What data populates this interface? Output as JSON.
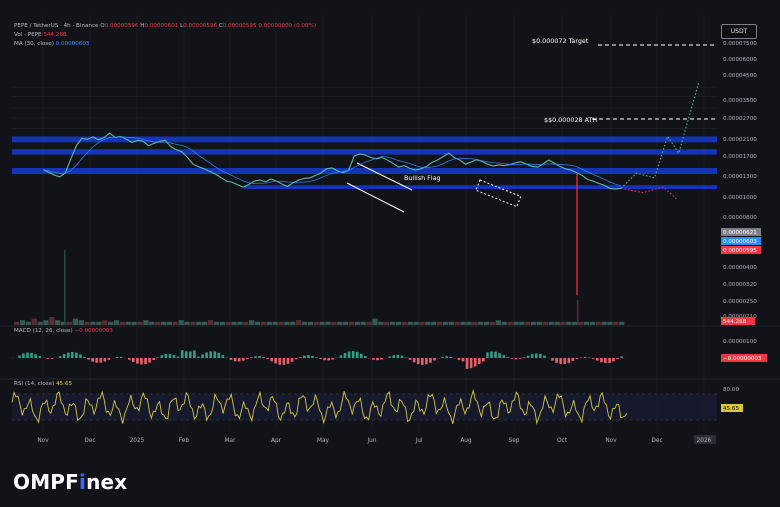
{
  "header": {
    "symbol_line_prefix": "PEPE / TetherUS · 4h · Binance",
    "ohlc": {
      "o_label": "O",
      "o": "0.00000596",
      "h_label": "H",
      "h": "0.00000601",
      "l_label": "L",
      "l": "0.00000596",
      "c_label": "C",
      "c": "0.00000595",
      "chg": "0.00000000 (0.00%)"
    },
    "vol_label": "Vol · PEPE",
    "vol_value": "544.26B",
    "ma_label": "MA (30, close)",
    "ma_value": "0.00000603",
    "currency_button": "USDT"
  },
  "macd_header": {
    "label": "MACD (12, 26, close)",
    "value": "−0.00000003"
  },
  "rsi_header": {
    "label": "RSI (14, close)",
    "value": "45.65"
  },
  "brand": {
    "part1": "OMPF",
    "part2": "i",
    "part3": "nex"
  },
  "colors": {
    "zone": "#1536c8",
    "price": "#5fb7a8",
    "ma": "#2c8cff",
    "down": "#f23645",
    "rsi": "#d7c63a",
    "grid": "#1e2029",
    "bg": "#121318",
    "brand_accent": "#2f6bff"
  },
  "chart_data": [
    {
      "type": "line",
      "name": "price",
      "x_ticks": [
        "Nov",
        "Dec",
        "2025",
        "Feb",
        "Mar",
        "Apr",
        "May",
        "Jun",
        "Jul",
        "Aug",
        "Sep",
        "Oct",
        "Nov",
        "Dec",
        "2026"
      ],
      "y_scale": "log",
      "y_ticks": [
        "0.00007500",
        "0.00006000",
        "0.00004500",
        "0.00003500",
        "0.00002700",
        "0.00002100",
        "0.00001700",
        "0.00001300",
        "0.00001000",
        "0.00000800",
        "0.00000621",
        "0.00000603",
        "0.00000595",
        "0.00000400",
        "0.00000320",
        "0.00000250",
        "0.00000210"
      ],
      "series": [
        {
          "values": [
            [
              0,
              9.6
            ],
            [
              0.25,
              9.0
            ],
            [
              0.5,
              8.4
            ],
            [
              0.75,
              8.0
            ],
            [
              1.0,
              8.8
            ],
            [
              1.25,
              12.5
            ],
            [
              1.5,
              17.5
            ],
            [
              1.75,
              21.0
            ],
            [
              2.0,
              20.5
            ],
            [
              2.25,
              21.8
            ],
            [
              2.5,
              20.2
            ],
            [
              2.75,
              21.5
            ],
            [
              3.0,
              24.0
            ],
            [
              3.25,
              21.5
            ],
            [
              3.5,
              22.0
            ],
            [
              3.75,
              20.5
            ],
            [
              4.0,
              19.0
            ],
            [
              4.25,
              20.0
            ],
            [
              4.5,
              19.5
            ],
            [
              4.75,
              17.5
            ],
            [
              5.0,
              18.5
            ],
            [
              5.25,
              19.5
            ],
            [
              5.5,
              20.0
            ],
            [
              5.75,
              17.0
            ],
            [
              6.0,
              15.8
            ],
            [
              6.25,
              15.0
            ],
            [
              6.5,
              13.0
            ],
            [
              6.75,
              11.0
            ],
            [
              7.0,
              10.3
            ],
            [
              7.25,
              9.8
            ],
            [
              7.5,
              9.2
            ],
            [
              7.75,
              8.6
            ],
            [
              8.0,
              7.9
            ],
            [
              8.25,
              7.2
            ],
            [
              8.5,
              7.0
            ],
            [
              8.75,
              6.6
            ],
            [
              9.0,
              6.2
            ],
            [
              9.25,
              6.6
            ],
            [
              9.5,
              7.2
            ],
            [
              9.75,
              7.4
            ],
            [
              10.0,
              7.1
            ],
            [
              10.25,
              7.6
            ],
            [
              10.5,
              7.2
            ],
            [
              10.75,
              6.7
            ],
            [
              11.0,
              6.3
            ],
            [
              11.25,
              6.9
            ],
            [
              11.5,
              7.4
            ],
            [
              11.75,
              7.7
            ],
            [
              12.0,
              7.8
            ],
            [
              12.25,
              8.3
            ],
            [
              12.5,
              8.8
            ],
            [
              12.75,
              9.8
            ],
            [
              13.0,
              10.0
            ],
            [
              13.25,
              9.3
            ],
            [
              13.5,
              8.9
            ],
            [
              13.75,
              9.5
            ],
            [
              14.0,
              13.5
            ],
            [
              14.25,
              14.2
            ],
            [
              14.5,
              13.8
            ],
            [
              14.75,
              13.0
            ],
            [
              15.0,
              12.6
            ],
            [
              15.25,
              13.0
            ],
            [
              15.5,
              12.2
            ],
            [
              15.75,
              11.2
            ],
            [
              16.0,
              10.2
            ],
            [
              16.25,
              10.6
            ],
            [
              16.5,
              9.9
            ],
            [
              16.75,
              9.5
            ],
            [
              17.0,
              9.8
            ],
            [
              17.25,
              10.4
            ],
            [
              17.5,
              11.5
            ],
            [
              17.75,
              12.2
            ],
            [
              18.0,
              13.3
            ],
            [
              18.25,
              14.5
            ],
            [
              18.5,
              13.0
            ],
            [
              18.75,
              12.2
            ],
            [
              19.0,
              11.0
            ],
            [
              19.25,
              11.6
            ],
            [
              19.5,
              12.3
            ],
            [
              19.75,
              11.8
            ],
            [
              20.0,
              11.0
            ],
            [
              20.25,
              10.5
            ],
            [
              20.5,
              10.8
            ],
            [
              20.75,
              10.6
            ],
            [
              21.0,
              10.9
            ],
            [
              21.25,
              11.4
            ],
            [
              21.5,
              11.7
            ],
            [
              21.75,
              11.0
            ],
            [
              22.0,
              10.4
            ],
            [
              22.25,
              10.2
            ],
            [
              22.5,
              11.1
            ],
            [
              22.75,
              12.2
            ],
            [
              23.0,
              11.3
            ],
            [
              23.25,
              10.4
            ],
            [
              23.5,
              9.8
            ],
            [
              23.75,
              9.5
            ],
            [
              24.0,
              8.9
            ],
            [
              24.25,
              8.3
            ],
            [
              24.5,
              7.5
            ],
            [
              24.75,
              7.2
            ],
            [
              25.0,
              6.8
            ],
            [
              25.25,
              6.5
            ],
            [
              25.5,
              6.0
            ],
            [
              25.75,
              5.9
            ],
            [
              26.0,
              6.0
            ]
          ]
        },
        {
          "name": "projection",
          "values": [
            [
              26.0,
              6.0
            ],
            [
              26.7,
              8.8
            ],
            [
              27.5,
              7.8
            ],
            [
              28.1,
              22.0
            ],
            [
              28.6,
              14.5
            ],
            [
              29.5,
              86.0
            ]
          ]
        },
        {
          "name": "bearish_projection",
          "values": [
            [
              26.0,
              6.0
            ],
            [
              27.0,
              5.4
            ],
            [
              27.9,
              6.2
            ],
            [
              28.5,
              4.6
            ]
          ]
        }
      ],
      "support_zones": [
        {
          "label": "",
          "low": 19.0,
          "high": 22.0
        },
        {
          "label": "",
          "low": 14.0,
          "high": 16.0
        },
        {
          "label": "",
          "low": 8.6,
          "high": 10.0
        },
        {
          "label": "",
          "low": 5.9,
          "high": 6.5
        }
      ],
      "annotations": [
        {
          "text": "$0.000072 Target",
          "value": 72
        },
        {
          "text": "$$0.000028 ATH",
          "value": 28
        },
        {
          "text": "Bullish Flag",
          "value": 12.8
        }
      ],
      "grid": true,
      "legend": "none"
    },
    {
      "type": "bar",
      "name": "volume",
      "values": [
        2,
        3,
        2,
        4,
        2,
        3,
        5,
        3,
        2,
        2,
        4,
        3,
        2,
        2,
        2,
        3,
        2,
        3,
        2,
        2,
        2,
        2,
        3,
        2,
        2,
        2,
        2,
        2,
        3,
        2,
        2,
        2,
        2,
        3,
        2,
        2,
        2,
        2,
        2,
        2,
        3,
        2,
        2,
        2,
        2,
        2,
        2,
        2,
        3,
        2,
        2,
        2,
        2,
        2,
        2,
        2,
        2,
        2,
        2,
        2,
        2,
        4,
        2,
        2,
        2,
        2,
        2,
        2,
        2,
        2,
        2,
        2,
        2,
        2,
        2,
        2,
        2,
        2,
        2,
        2,
        2,
        2,
        3,
        2,
        2,
        2,
        2,
        2,
        2,
        2,
        2,
        2,
        2,
        2,
        2,
        2,
        2,
        2,
        2,
        2,
        2,
        2,
        2,
        2
      ]
    },
    {
      "type": "bar",
      "name": "MACD (12, 26, close)",
      "ylim": [
        -1e-06,
        1e-06
      ],
      "y_ticks": [
        "0.00000100",
        "−0.00000003"
      ]
    },
    {
      "type": "line",
      "name": "RSI (14, close)",
      "ylim": [
        0,
        100
      ],
      "y_ticks": [
        "80.00",
        "45.65"
      ],
      "bands": [
        30,
        70
      ]
    }
  ]
}
